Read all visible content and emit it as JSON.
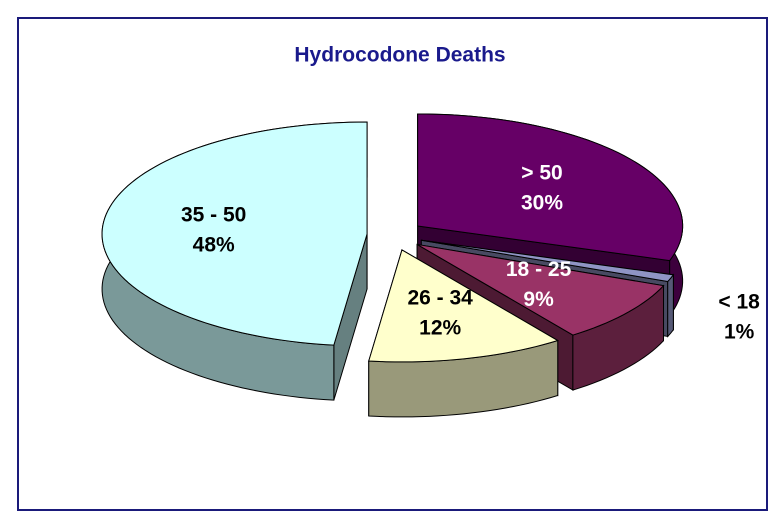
{
  "chart_data": {
    "type": "pie",
    "title": "Hydrocodone Deaths",
    "categories": [
      "> 50",
      "< 18",
      "18 - 25",
      "26 - 34",
      "35 - 50"
    ],
    "values": [
      30,
      1,
      9,
      12,
      48
    ],
    "value_labels": [
      "30%",
      "1%",
      "9%",
      "12%",
      "48%"
    ],
    "colors": [
      "#660066",
      "#8f94c4",
      "#993366",
      "#ffffcc",
      "#ccffff"
    ]
  }
}
